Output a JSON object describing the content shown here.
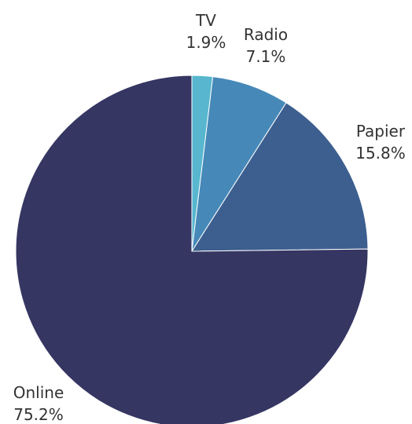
{
  "chart_data": {
    "type": "pie",
    "start_angle_deg": 0,
    "direction": "clockwise",
    "slices": [
      {
        "label": "TV",
        "value": 1.9,
        "display": "1.9%",
        "color": "#58b7cf"
      },
      {
        "label": "Radio",
        "value": 7.1,
        "display": "7.1%",
        "color": "#4689b8"
      },
      {
        "label": "Papier",
        "value": 15.8,
        "display": "15.8%",
        "color": "#3c5f8f"
      },
      {
        "label": "Online",
        "value": 75.2,
        "display": "75.2%",
        "color": "#363663"
      }
    ]
  }
}
